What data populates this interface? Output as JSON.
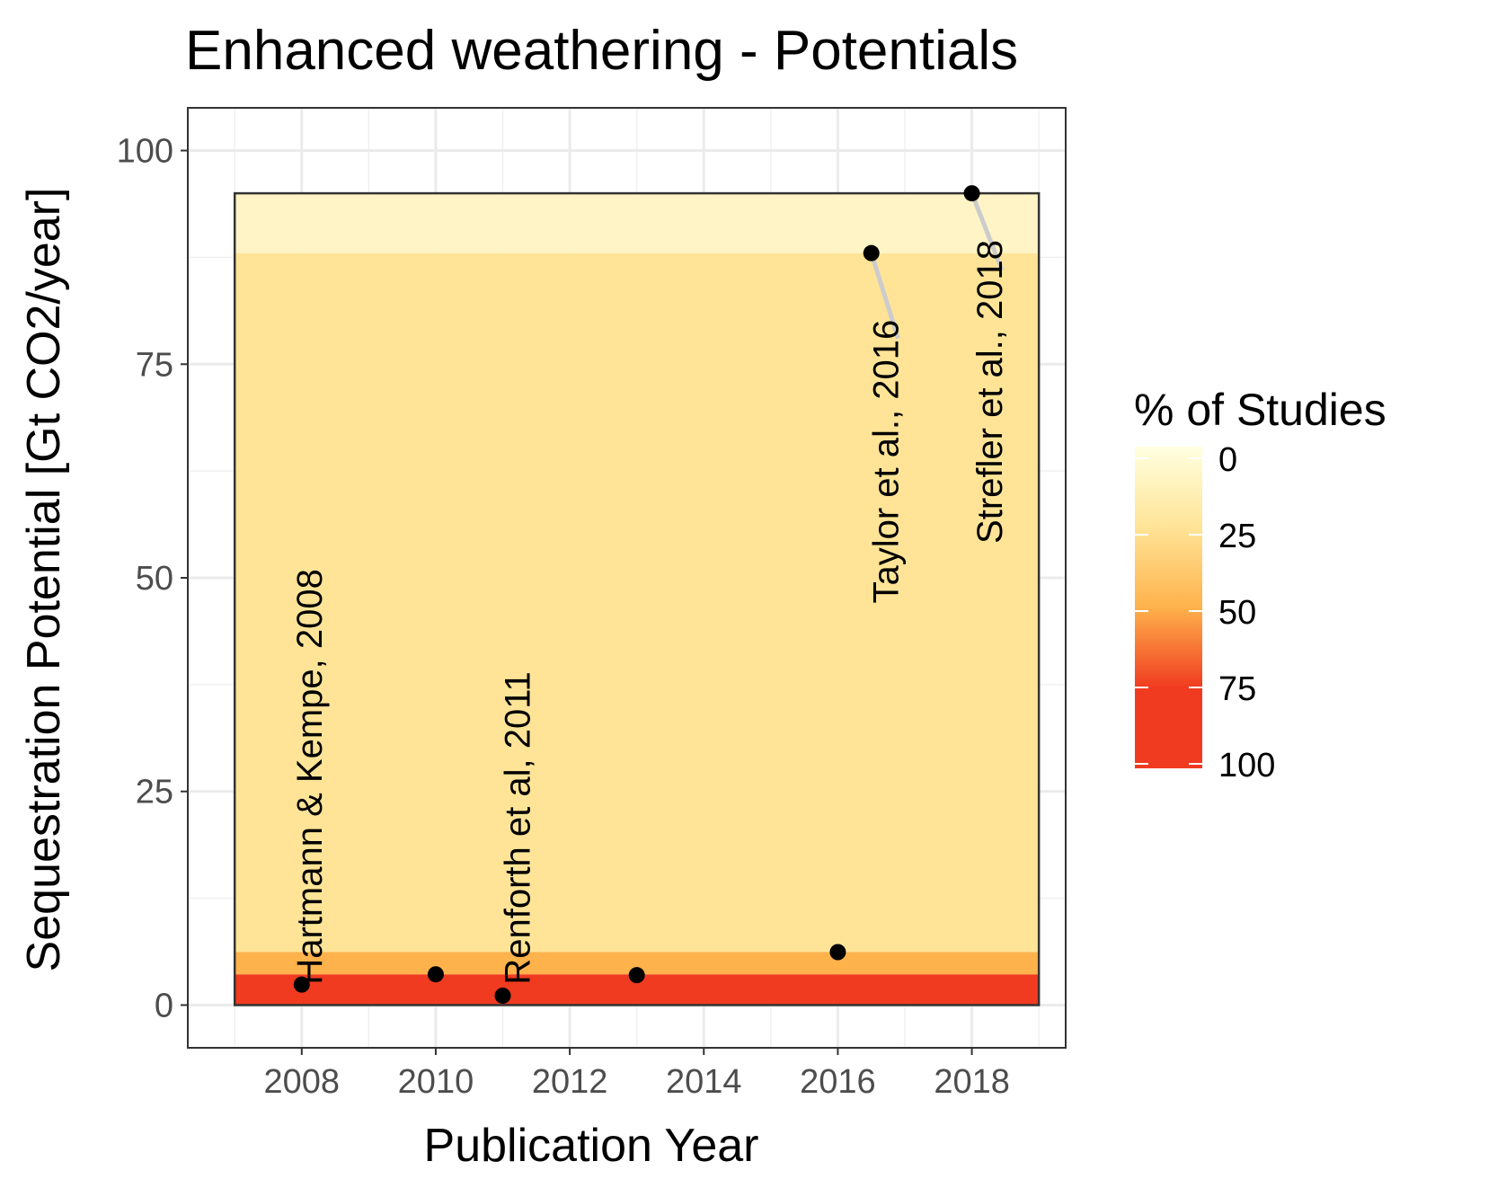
{
  "chart_data": {
    "type": "scatter",
    "title": "Enhanced weathering - Potentials",
    "xlabel": "Publication Year",
    "ylabel": "Sequestration Potential [Gt CO2/year]",
    "xlim": [
      2006.3,
      2019.4
    ],
    "ylim": [
      -5,
      105
    ],
    "x_ticks": [
      2008,
      2010,
      2012,
      2014,
      2016,
      2018
    ],
    "y_ticks": [
      0,
      25,
      50,
      75,
      100
    ],
    "grid": true,
    "points": [
      {
        "x": 2008,
        "y": 2.4
      },
      {
        "x": 2010,
        "y": 3.6
      },
      {
        "x": 2011,
        "y": 1.1
      },
      {
        "x": 2013,
        "y": 3.5
      },
      {
        "x": 2016,
        "y": 6.2
      },
      {
        "x": 2016.5,
        "y": 88
      },
      {
        "x": 2018,
        "y": 95
      }
    ],
    "annotations": [
      {
        "text": "Hartmann & Kempe, 2008",
        "x": 2008,
        "y": 2.4,
        "label_x": 2008.3,
        "label_y": 2.4
      },
      {
        "text": "Renforth et al, 2011",
        "x": 2011,
        "y": 1.1,
        "label_x": 2011.4,
        "label_y": 2.4
      },
      {
        "text": "Taylor et al., 2016",
        "x": 2016.5,
        "y": 88,
        "label_x": 2016.9,
        "label_y": 47,
        "leader_end_y": 78
      },
      {
        "text": "Strefler et al., 2018",
        "x": 2018,
        "y": 95,
        "label_x": 2018.45,
        "label_y": 54,
        "leader_end_y": 86
      }
    ],
    "bands": {
      "x_range": [
        2007,
        2019
      ],
      "y_max": 95,
      "ranges": [
        {
          "y0": 0,
          "y1": 3.6,
          "color": "#F03B20"
        },
        {
          "y0": 3.6,
          "y1": 6.2,
          "color": "#FEB24C"
        },
        {
          "y0": 6.2,
          "y1": 88,
          "color": "#FFE497"
        },
        {
          "y0": 88,
          "y1": 95,
          "color": "#FFF4C6"
        }
      ]
    },
    "legend": {
      "title": "% of Studies",
      "position": "right",
      "labels": [
        "0",
        "25",
        "50",
        "75",
        "100"
      ],
      "values": [
        0,
        25,
        50,
        75,
        100
      ],
      "colors": [
        "#FFFFE0",
        "#FFE497",
        "#FEB24C",
        "#F03B20",
        "#F03B20"
      ]
    }
  }
}
